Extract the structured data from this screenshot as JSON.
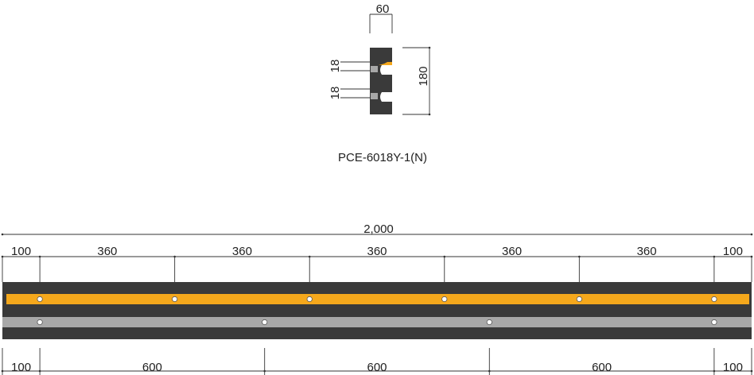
{
  "section": {
    "width_label": "60",
    "height_label": "180",
    "groove_top_label": "18",
    "groove_bottom_label": "18",
    "model_name": "PCE-6018Y-1(N)"
  },
  "plan": {
    "total_label": "2,000",
    "top_spacing_labels": [
      "100",
      "360",
      "360",
      "360",
      "360",
      "360",
      "100"
    ],
    "bottom_spacing_labels": [
      "100",
      "600",
      "600",
      "600",
      "100"
    ],
    "top_holes_mm": [
      100,
      460,
      820,
      1180,
      1540,
      1900
    ],
    "bottom_holes_mm": [
      100,
      700,
      1300,
      1900
    ],
    "total_mm": 2000
  },
  "colors": {
    "body": "#3a3a3a",
    "yellow_strip": "#f5a81c",
    "gray_strip": "#a8a8a8",
    "hole": "#ffffff"
  }
}
